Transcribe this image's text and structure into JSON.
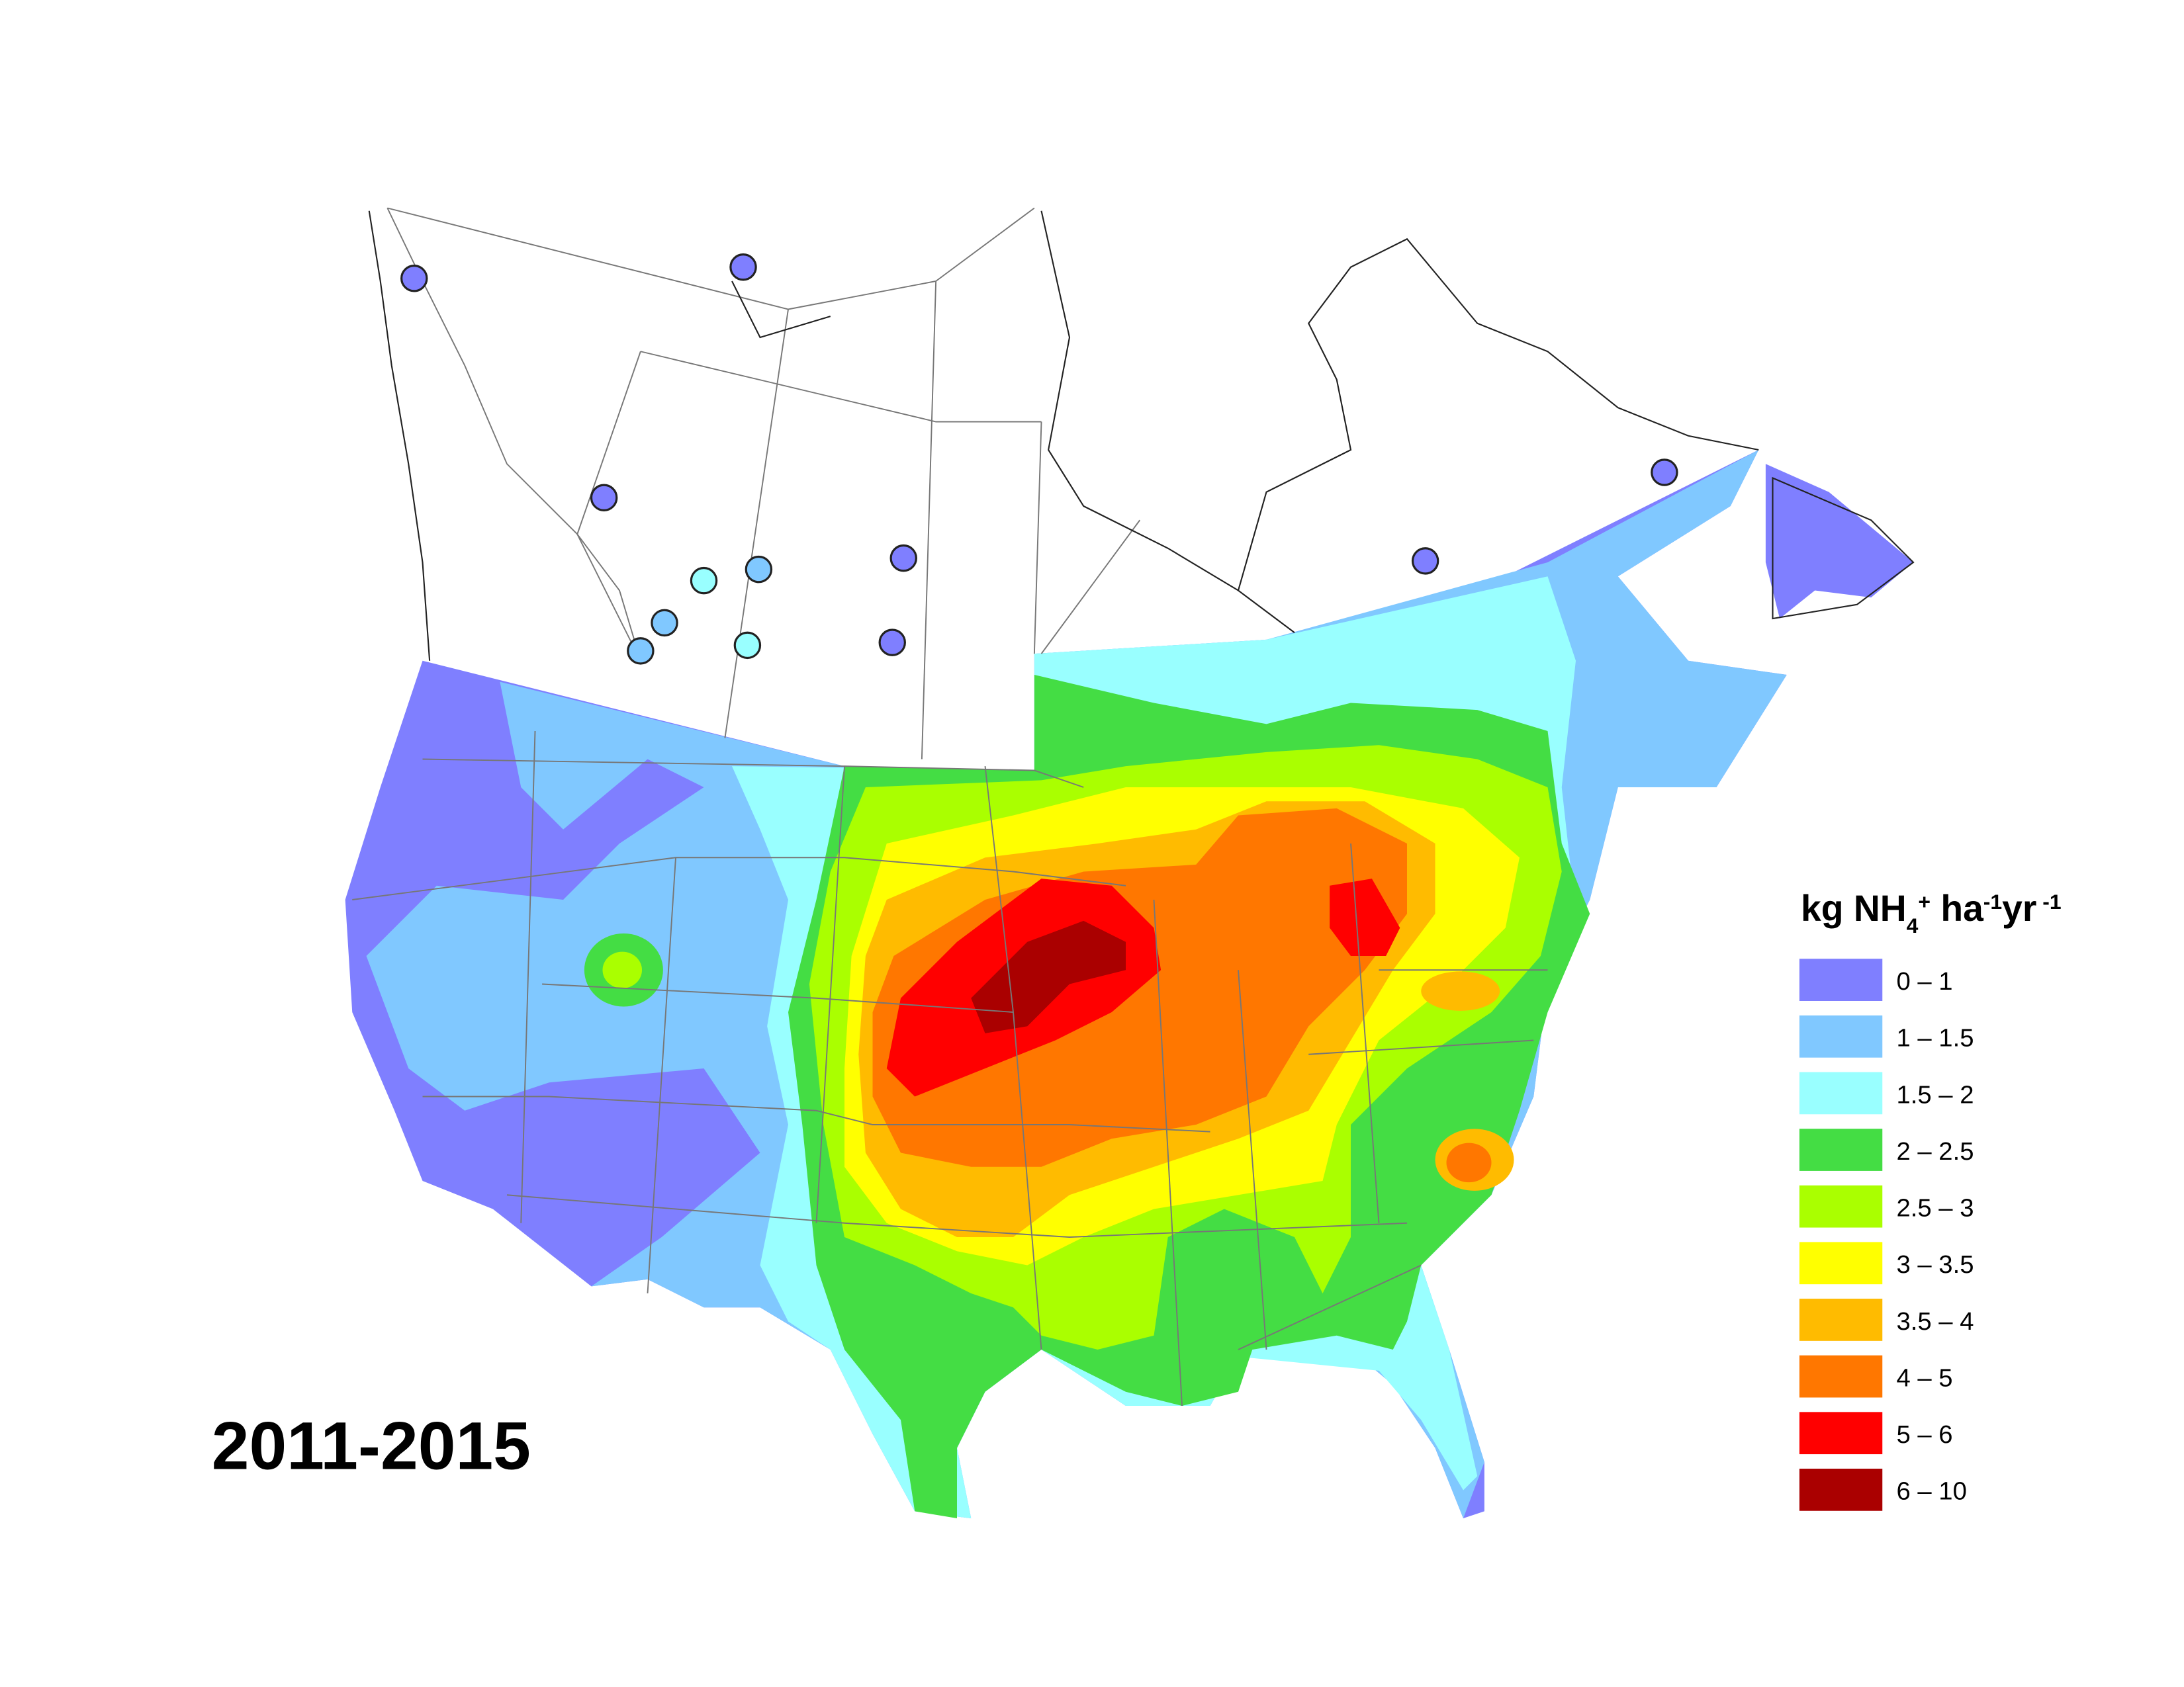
{
  "map": {
    "period": "2011-2015",
    "legend": {
      "title_parts": [
        "kg NH",
        "4",
        "+",
        " ha",
        "-1",
        "yr",
        " -1"
      ],
      "items": [
        {
          "label": "0 – 1",
          "color": "#7f7fff"
        },
        {
          "label": "1 – 1.5",
          "color": "#80c8ff"
        },
        {
          "label": "1.5 – 2",
          "color": "#99ffff"
        },
        {
          "label": "2 – 2.5",
          "color": "#44dd44"
        },
        {
          "label": "2.5 – 3",
          "color": "#aaff00"
        },
        {
          "label": "3 – 3.5",
          "color": "#ffff00"
        },
        {
          "label": "3.5 – 4",
          "color": "#ffbb00"
        },
        {
          "label": "4 – 5",
          "color": "#ff7700"
        },
        {
          "label": "5 – 6",
          "color": "#ff0000"
        },
        {
          "label": "6 – 10",
          "color": "#aa0000"
        }
      ]
    }
  }
}
